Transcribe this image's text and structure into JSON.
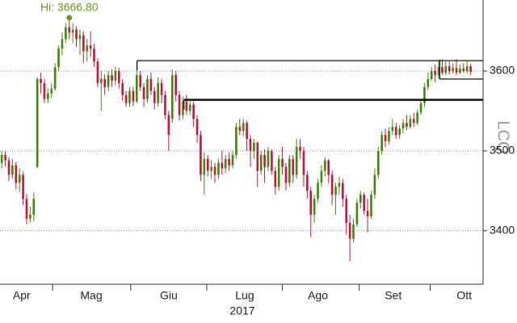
{
  "chart_data": {
    "type": "candlestick",
    "year_label": "2017",
    "watermark": "LCQ",
    "up_color": "#3f8a0c",
    "down_color": "#c8163e",
    "xlim": [
      0,
      136
    ],
    "ylim": [
      3333,
      3689
    ],
    "yticks": [
      3400,
      3500,
      3600
    ],
    "grid": true,
    "xticks": [
      {
        "value": 6.1,
        "label": "Apr"
      },
      {
        "value": 25.7,
        "label": "Mag"
      },
      {
        "value": 47.5,
        "label": "Giu"
      },
      {
        "value": 68.9,
        "label": "Lug"
      },
      {
        "value": 89.5,
        "label": "Ago"
      },
      {
        "value": 110.7,
        "label": "Set"
      },
      {
        "value": 130.7,
        "label": "Ott"
      }
    ],
    "month_bounds": [
      14.8,
      36.8,
      58.2,
      79.5,
      101.1,
      121.1
    ],
    "high_marker": {
      "label": "Hi: 3666.80",
      "value": 3666.8,
      "x": 19.5,
      "color": "#6a9a1f"
    },
    "levels": [
      {
        "value": 3613,
        "x_start": 38.6
      },
      {
        "value": 3564,
        "x_start": 51.8
      },
      {
        "value": 3590,
        "x_start": 123.8
      }
    ],
    "open": [
      3485,
      3495,
      3488,
      3470,
      3482,
      3460,
      3470,
      3440,
      3415,
      3420,
      3480,
      3590,
      3585,
      3565,
      3572,
      3578,
      3605,
      3628,
      3640,
      3655,
      3648,
      3652,
      3640,
      3645,
      3625,
      3632,
      3628,
      3612,
      3585,
      3590,
      3580,
      3595,
      3588,
      3600,
      3585,
      3570,
      3560,
      3575,
      3562,
      3595,
      3580,
      3565,
      3590,
      3575,
      3560,
      3585,
      3570,
      3545,
      3540,
      3595,
      3570,
      3545,
      3562,
      3550,
      3558,
      3540,
      3520,
      3470,
      3490,
      3475,
      3480,
      3470,
      3485,
      3478,
      3490,
      3482,
      3495,
      3530,
      3525,
      3535,
      3515,
      3500,
      3510,
      3475,
      3495,
      3480,
      3500,
      3475,
      3455,
      3490,
      3480,
      3460,
      3490,
      3470,
      3505,
      3500,
      3470,
      3450,
      3420,
      3440,
      3460,
      3475,
      3488,
      3470,
      3445,
      3455,
      3460,
      3440,
      3410,
      3390,
      3408,
      3435,
      3445,
      3425,
      3418,
      3445,
      3470,
      3500,
      3520,
      3512,
      3525,
      3530,
      3520,
      3528,
      3535,
      3530,
      3540,
      3535,
      3548,
      3560,
      3580,
      3590,
      3600,
      3595,
      3605,
      3598,
      3606,
      3600,
      3604,
      3598,
      3603,
      3600,
      3606
    ],
    "high": [
      3500,
      3500,
      3492,
      3490,
      3486,
      3478,
      3474,
      3446,
      3430,
      3448,
      3592,
      3598,
      3590,
      3578,
      3585,
      3610,
      3632,
      3648,
      3660,
      3667,
      3660,
      3656,
      3652,
      3650,
      3640,
      3650,
      3634,
      3616,
      3600,
      3596,
      3600,
      3602,
      3605,
      3604,
      3590,
      3575,
      3580,
      3580,
      3612,
      3600,
      3585,
      3595,
      3598,
      3580,
      3592,
      3590,
      3575,
      3550,
      3602,
      3600,
      3575,
      3568,
      3570,
      3565,
      3562,
      3545,
      3525,
      3498,
      3495,
      3488,
      3485,
      3490,
      3500,
      3495,
      3498,
      3500,
      3535,
      3540,
      3540,
      3538,
      3520,
      3515,
      3512,
      3500,
      3502,
      3505,
      3502,
      3480,
      3495,
      3505,
      3485,
      3495,
      3495,
      3515,
      3515,
      3505,
      3475,
      3455,
      3445,
      3465,
      3482,
      3492,
      3490,
      3475,
      3460,
      3468,
      3465,
      3445,
      3420,
      3415,
      3440,
      3450,
      3448,
      3440,
      3450,
      3478,
      3505,
      3525,
      3528,
      3530,
      3540,
      3535,
      3532,
      3540,
      3545,
      3545,
      3548,
      3552,
      3565,
      3585,
      3598,
      3605,
      3608,
      3612,
      3615,
      3612,
      3612,
      3610,
      3615,
      3608,
      3610,
      3612,
      3609
    ],
    "low": [
      3478,
      3480,
      3462,
      3465,
      3452,
      3448,
      3432,
      3408,
      3410,
      3412,
      3478,
      3572,
      3560,
      3560,
      3566,
      3575,
      3600,
      3620,
      3635,
      3640,
      3635,
      3630,
      3620,
      3610,
      3612,
      3618,
      3605,
      3580,
      3550,
      3570,
      3575,
      3580,
      3582,
      3578,
      3562,
      3555,
      3555,
      3556,
      3560,
      3575,
      3555,
      3560,
      3570,
      3552,
      3555,
      3560,
      3540,
      3500,
      3535,
      3562,
      3538,
      3540,
      3545,
      3545,
      3530,
      3510,
      3462,
      3445,
      3468,
      3465,
      3460,
      3465,
      3470,
      3472,
      3475,
      3478,
      3490,
      3520,
      3518,
      3500,
      3480,
      3490,
      3455,
      3470,
      3460,
      3475,
      3470,
      3445,
      3450,
      3470,
      3450,
      3455,
      3460,
      3465,
      3490,
      3455,
      3440,
      3392,
      3410,
      3435,
      3455,
      3468,
      3460,
      3432,
      3420,
      3445,
      3430,
      3395,
      3362,
      3385,
      3405,
      3428,
      3420,
      3398,
      3415,
      3440,
      3465,
      3495,
      3505,
      3508,
      3520,
      3515,
      3515,
      3522,
      3526,
      3528,
      3530,
      3532,
      3545,
      3555,
      3576,
      3588,
      3586,
      3590,
      3595,
      3595,
      3596,
      3597,
      3595,
      3596,
      3598,
      3597,
      3595
    ],
    "close": [
      3495,
      3488,
      3470,
      3482,
      3460,
      3470,
      3440,
      3415,
      3420,
      3440,
      3590,
      3585,
      3565,
      3572,
      3578,
      3605,
      3628,
      3640,
      3655,
      3648,
      3652,
      3640,
      3645,
      3625,
      3632,
      3628,
      3612,
      3585,
      3590,
      3580,
      3595,
      3588,
      3600,
      3585,
      3570,
      3560,
      3575,
      3562,
      3595,
      3580,
      3565,
      3590,
      3575,
      3560,
      3585,
      3570,
      3545,
      3520,
      3595,
      3570,
      3545,
      3562,
      3550,
      3558,
      3540,
      3520,
      3470,
      3490,
      3475,
      3480,
      3470,
      3485,
      3478,
      3490,
      3482,
      3495,
      3530,
      3525,
      3535,
      3515,
      3500,
      3510,
      3475,
      3495,
      3480,
      3500,
      3475,
      3455,
      3490,
      3480,
      3460,
      3490,
      3470,
      3505,
      3500,
      3470,
      3450,
      3420,
      3440,
      3460,
      3475,
      3488,
      3470,
      3445,
      3455,
      3460,
      3440,
      3410,
      3390,
      3408,
      3435,
      3445,
      3425,
      3418,
      3445,
      3470,
      3500,
      3520,
      3512,
      3525,
      3530,
      3520,
      3528,
      3535,
      3530,
      3540,
      3535,
      3548,
      3560,
      3580,
      3590,
      3600,
      3595,
      3605,
      3598,
      3606,
      3600,
      3604,
      3598,
      3603,
      3600,
      3606,
      3599
    ]
  }
}
